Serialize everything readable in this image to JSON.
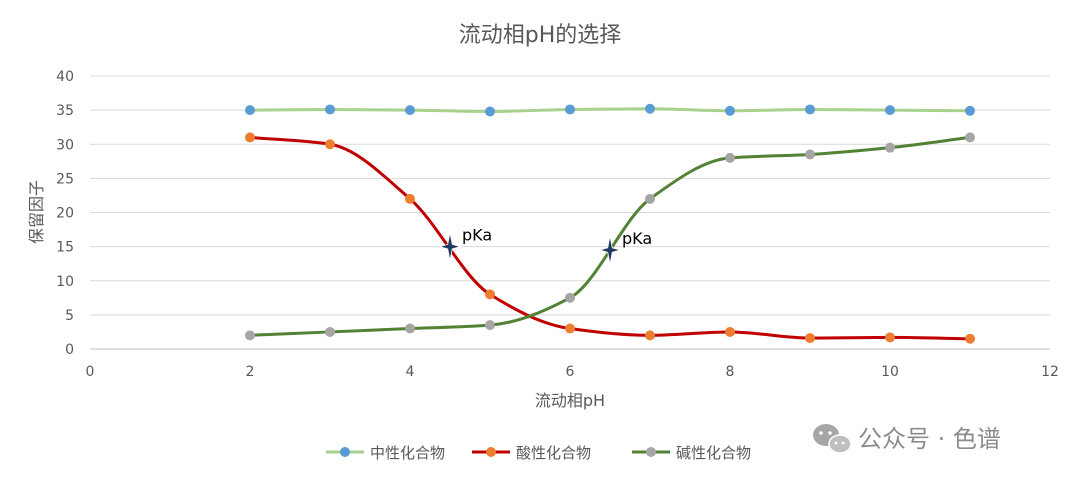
{
  "chart_data": {
    "type": "line",
    "title": "流动相pH的选择",
    "xlabel": "流动相pH",
    "ylabel": "保留因子",
    "xlim": [
      0,
      12
    ],
    "ylim": [
      0,
      40
    ],
    "xticks": [
      0,
      2,
      4,
      6,
      8,
      10,
      12
    ],
    "yticks": [
      0,
      5,
      10,
      15,
      20,
      25,
      30,
      35,
      40
    ],
    "grid": "horizontal",
    "legend": "bottom",
    "series": [
      {
        "name": "中性化合物",
        "color": "#a9d18e",
        "marker_color": "#5b9bd5",
        "x": [
          2,
          3,
          4,
          5,
          6,
          7,
          8,
          9,
          10,
          11
        ],
        "y": [
          35,
          35.1,
          35,
          34.8,
          35.1,
          35.2,
          34.9,
          35.1,
          35,
          34.9
        ]
      },
      {
        "name": "酸性化合物",
        "color": "#c00000",
        "marker_color": "#ed7d31",
        "x": [
          2,
          3,
          4,
          5,
          6,
          7,
          8,
          9,
          10,
          11
        ],
        "y": [
          31,
          30,
          22,
          8,
          3,
          2,
          2.5,
          1.6,
          1.7,
          1.5
        ]
      },
      {
        "name": "碱性化合物",
        "color": "#548235",
        "marker_color": "#a5a5a5",
        "x": [
          2,
          3,
          4,
          5,
          6,
          7,
          8,
          9,
          10,
          11
        ],
        "y": [
          2,
          2.5,
          3,
          3.5,
          7.5,
          22,
          28,
          28.5,
          29.5,
          31
        ]
      }
    ],
    "annotations": [
      {
        "text": "pKa",
        "x": 4.5,
        "y": 15,
        "marker": "star",
        "color": "#1f3864"
      },
      {
        "text": "pKa",
        "x": 6.5,
        "y": 14.5,
        "marker": "star",
        "color": "#1f3864"
      }
    ]
  },
  "watermark": {
    "text": "公众号 · 色谱",
    "icon": "wechat-icon"
  }
}
